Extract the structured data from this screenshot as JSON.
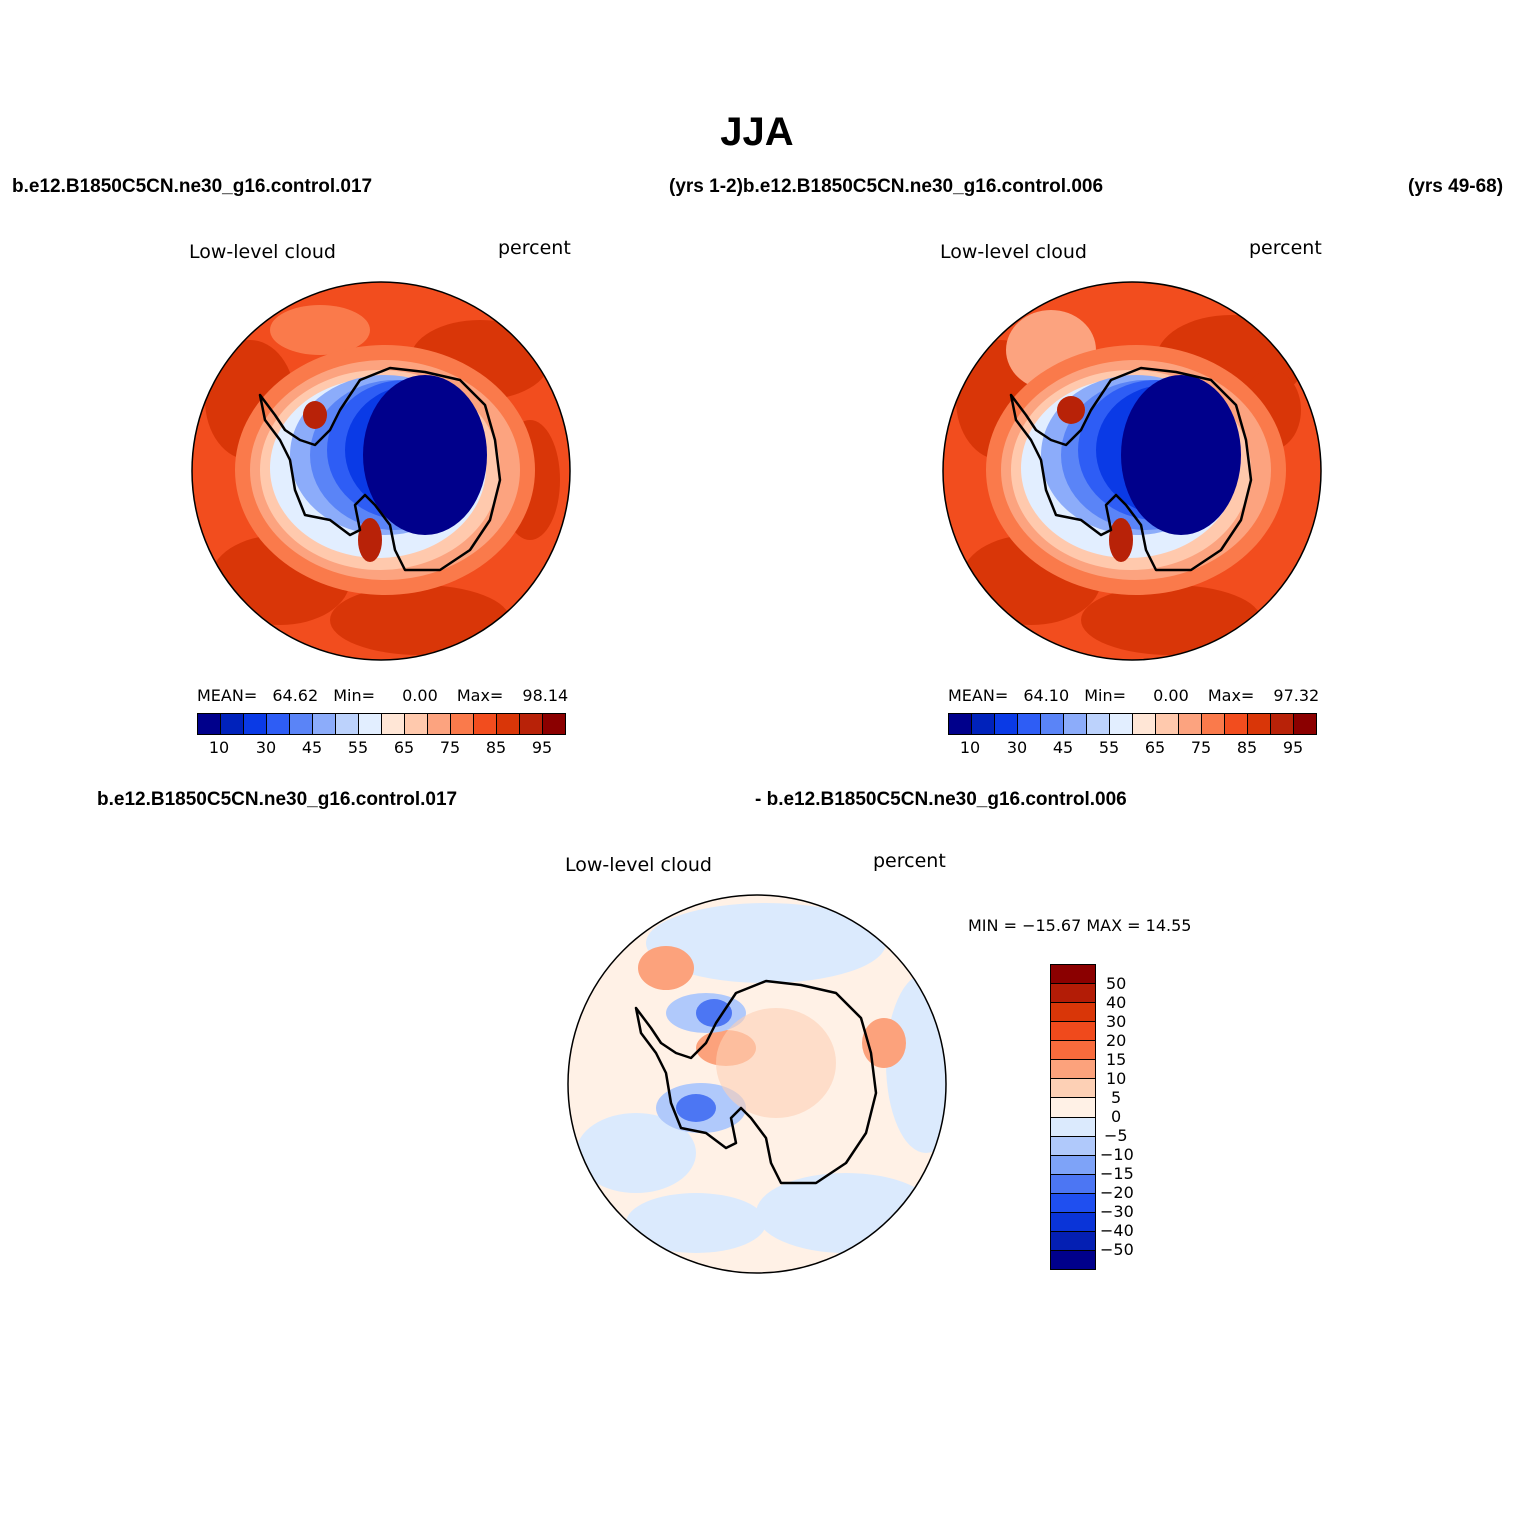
{
  "figure": {
    "title": "JJA",
    "top_left_case": "b.e12.B1850C5CN.ne30_g16.control.017",
    "top_mid_label": "(yrs 1-2)b.e12.B1850C5CN.ne30_g16.control.006",
    "top_right_label": "(yrs 49-68)",
    "diff_left_case": "b.e12.B1850C5CN.ne30_g16.control.017",
    "diff_right_case": "- b.e12.B1850C5CN.ne30_g16.control.006"
  },
  "panels": [
    {
      "variable": "Low-level cloud",
      "units": "percent",
      "stats": {
        "mean_label": "MEAN=",
        "mean": "64.62",
        "min_label": "Min=",
        "min": "0.00",
        "max_label": "Max=",
        "max": "98.14"
      }
    },
    {
      "variable": "Low-level cloud",
      "units": "percent",
      "stats": {
        "mean_label": "MEAN=",
        "mean": "64.10",
        "min_label": "Min=",
        "min": "0.00",
        "max_label": "Max=",
        "max": "97.32"
      }
    },
    {
      "variable": "Low-level cloud",
      "units": "percent",
      "stats_line": "MIN = −15.67 MAX =   14.55"
    }
  ],
  "colorbar_abs": {
    "colors": [
      "#00008b",
      "#0022bb",
      "#0a3ae6",
      "#2e5df5",
      "#5a84f7",
      "#8cacfa",
      "#bcd2fc",
      "#e2eeff",
      "#ffe6d6",
      "#ffc9ad",
      "#fca37f",
      "#fa7a4b",
      "#f24d1e",
      "#d93608",
      "#b82208",
      "#8b0000"
    ],
    "ticks": [
      "10",
      "30",
      "45",
      "55",
      "65",
      "75",
      "85",
      "95"
    ]
  },
  "colorbar_diff": {
    "colors": [
      "#8b0000",
      "#b31c06",
      "#d93608",
      "#f04a1c",
      "#f86b3c",
      "#fca27c",
      "#fdd0b5",
      "#fff1e6",
      "#dbeafd",
      "#b0c9fb",
      "#7ea3f8",
      "#4c76f3",
      "#1f4ff0",
      "#0a34d8",
      "#041fb3",
      "#00008b"
    ],
    "ticks": [
      "50",
      "40",
      "30",
      "20",
      "15",
      "10",
      "5",
      "0",
      "−5",
      "−10",
      "−15",
      "−20",
      "−30",
      "−40",
      "−50"
    ]
  },
  "chart_data": {
    "type": "heatmap",
    "projection": "south polar stereographic",
    "season": "JJA",
    "field": "Low-level cloud (percent)",
    "maps": [
      {
        "case": "b.e12.B1850C5CN.ne30_g16.control.017",
        "period": "yrs 1-2",
        "mean": 64.62,
        "min": 0.0,
        "max": 98.14
      },
      {
        "case": "b.e12.B1850C5CN.ne30_g16.control.006",
        "period": "yrs 49-68",
        "mean": 64.1,
        "min": 0.0,
        "max": 97.32
      },
      {
        "case": "difference",
        "min": -15.67,
        "max": 14.55
      }
    ],
    "abs_levels": [
      5,
      10,
      20,
      30,
      40,
      45,
      50,
      55,
      60,
      65,
      70,
      75,
      80,
      85,
      90,
      95
    ],
    "diff_levels": [
      -50,
      -40,
      -30,
      -20,
      -15,
      -10,
      -5,
      0,
      5,
      10,
      15,
      20,
      30,
      40,
      50
    ]
  }
}
